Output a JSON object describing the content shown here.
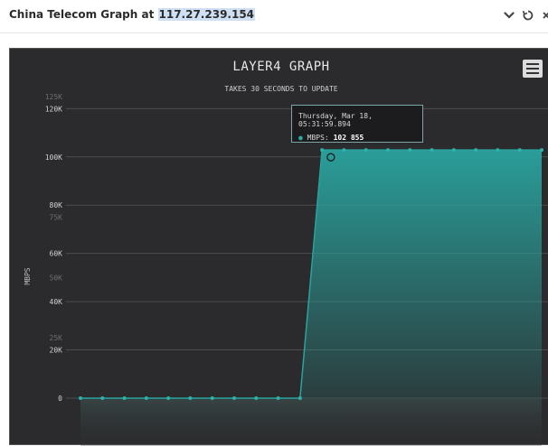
{
  "header": {
    "title_prefix": "China Telecom Graph at ",
    "ip": "117.27.239.154",
    "icons": [
      "chevron-down-icon",
      "refresh-icon",
      "close-icon"
    ]
  },
  "chart_data": {
    "type": "area",
    "title": "LAYER4 GRAPH",
    "subtitle": "TAKES 30 SECONDS TO UPDATE",
    "ylabel": "MBPS",
    "ylim": [
      0,
      125000
    ],
    "y_ticks": [
      "125K",
      "120K",
      "100K",
      "80K",
      "75K",
      "60K",
      "50K",
      "40K",
      "25K",
      "20K",
      "0"
    ],
    "series": [
      {
        "name": "MBPS",
        "color": "#2aa39e",
        "values": [
          0,
          0,
          0,
          0,
          0,
          0,
          0,
          0,
          0,
          0,
          0,
          102855,
          102855,
          102855,
          102855,
          102855,
          102855,
          102855,
          102855,
          102855,
          102855,
          102855
        ]
      }
    ],
    "tooltip": {
      "date": "Thursday, Mar 18, 05:31:59.894",
      "label": "MBPS:",
      "value": "102 855"
    }
  }
}
